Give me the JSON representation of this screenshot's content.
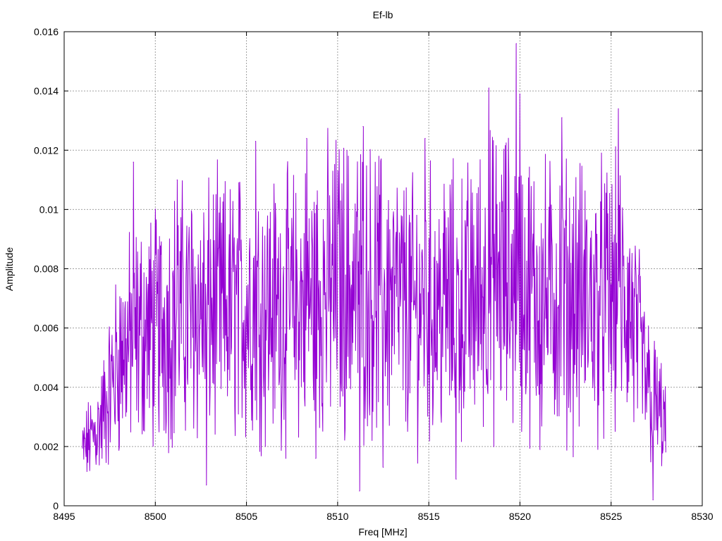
{
  "chart_data": {
    "type": "line",
    "title": "Ef-lb",
    "xlabel": "Freq [MHz]",
    "ylabel": "Amplitude",
    "xlim": [
      8495,
      8530
    ],
    "ylim": [
      0,
      0.016
    ],
    "x_ticks": [
      "8495",
      "8500",
      "8505",
      "8510",
      "8515",
      "8520",
      "8525",
      "8530"
    ],
    "y_ticks": [
      "0",
      "0.002",
      "0.004",
      "0.006",
      "0.008",
      "0.01",
      "0.012",
      "0.014",
      "0.016"
    ],
    "grid": true,
    "legend": "none",
    "series": [
      {
        "color": "#9400d3",
        "x_range": [
          8496.0,
          8528.0
        ],
        "num_points": 1280,
        "envelope_x": [
          8496.0,
          8497.0,
          8498.0,
          8499.0,
          8500.0,
          8501.0,
          8502.0,
          8503.0,
          8504.0,
          8505.0,
          8506.0,
          8507.0,
          8508.0,
          8509.0,
          8510.0,
          8511.0,
          8512.0,
          8513.0,
          8514.0,
          8515.0,
          8516.0,
          8517.0,
          8518.0,
          8519.0,
          8520.0,
          8521.0,
          8522.0,
          8523.0,
          8524.0,
          8525.0,
          8526.0,
          8527.0,
          8528.0
        ],
        "envelope_mean": [
          0.0018,
          0.0028,
          0.005,
          0.0058,
          0.006,
          0.0064,
          0.0066,
          0.0066,
          0.0066,
          0.0068,
          0.0068,
          0.0066,
          0.0068,
          0.0072,
          0.0075,
          0.0074,
          0.0072,
          0.007,
          0.0066,
          0.0068,
          0.0068,
          0.0068,
          0.0074,
          0.0076,
          0.0074,
          0.007,
          0.007,
          0.007,
          0.0068,
          0.007,
          0.0066,
          0.004,
          0.0026
        ],
        "peaks": [
          {
            "x": 8498.8,
            "y": 0.0116
          },
          {
            "x": 8501.2,
            "y": 0.011
          },
          {
            "x": 8502.8,
            "y": 0.0007
          },
          {
            "x": 8505.5,
            "y": 0.0123
          },
          {
            "x": 8508.3,
            "y": 0.0124
          },
          {
            "x": 8508.8,
            "y": 0.0016
          },
          {
            "x": 8510.0,
            "y": 0.0113
          },
          {
            "x": 8511.2,
            "y": 0.0005
          },
          {
            "x": 8511.4,
            "y": 0.0128
          },
          {
            "x": 8512.5,
            "y": 0.0013
          },
          {
            "x": 8514.8,
            "y": 0.0124
          },
          {
            "x": 8516.5,
            "y": 0.0009
          },
          {
            "x": 8518.3,
            "y": 0.0141
          },
          {
            "x": 8519.8,
            "y": 0.0156
          },
          {
            "x": 8520.0,
            "y": 0.0139
          },
          {
            "x": 8521.1,
            "y": 0.0019
          },
          {
            "x": 8522.3,
            "y": 0.0131
          },
          {
            "x": 8525.4,
            "y": 0.0134
          },
          {
            "x": 8527.3,
            "y": 0.0002
          }
        ]
      }
    ]
  }
}
